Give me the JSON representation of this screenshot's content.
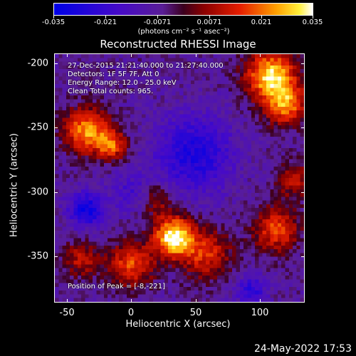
{
  "colorbar": {
    "tick_labels": [
      "-0.035",
      "-0.021",
      "-0.0071",
      "0.0071",
      "0.021",
      "0.035"
    ],
    "units": "(photons cm⁻² s⁻¹ asec⁻²)",
    "range": [
      -0.035,
      0.035
    ]
  },
  "title": "Reconstructed RHESSI Image",
  "annotations": {
    "time_range": "27-Dec-2015 21:21:40.000 to 21:27:40.000",
    "detectors": "Detectors: 1F 5F 7F, Att 0",
    "energy": "Energy Range: 12.0 - 25.0 keV",
    "method": "Clean     Total counts: 965.",
    "peak": "Position of Peak = [-8,-221]"
  },
  "axes": {
    "x_title": "Heliocentric X (arcsec)",
    "y_title": "Heliocentric Y (arcsec)",
    "x_ticks": [
      "-50",
      "0",
      "50",
      "100"
    ],
    "y_ticks": [
      "-200",
      "-250",
      "-300",
      "-350"
    ],
    "x_range": [
      -65,
      130
    ],
    "y_range": [
      -385,
      -190
    ]
  },
  "footer": {
    "date": "24-May-2022 17:53"
  }
}
